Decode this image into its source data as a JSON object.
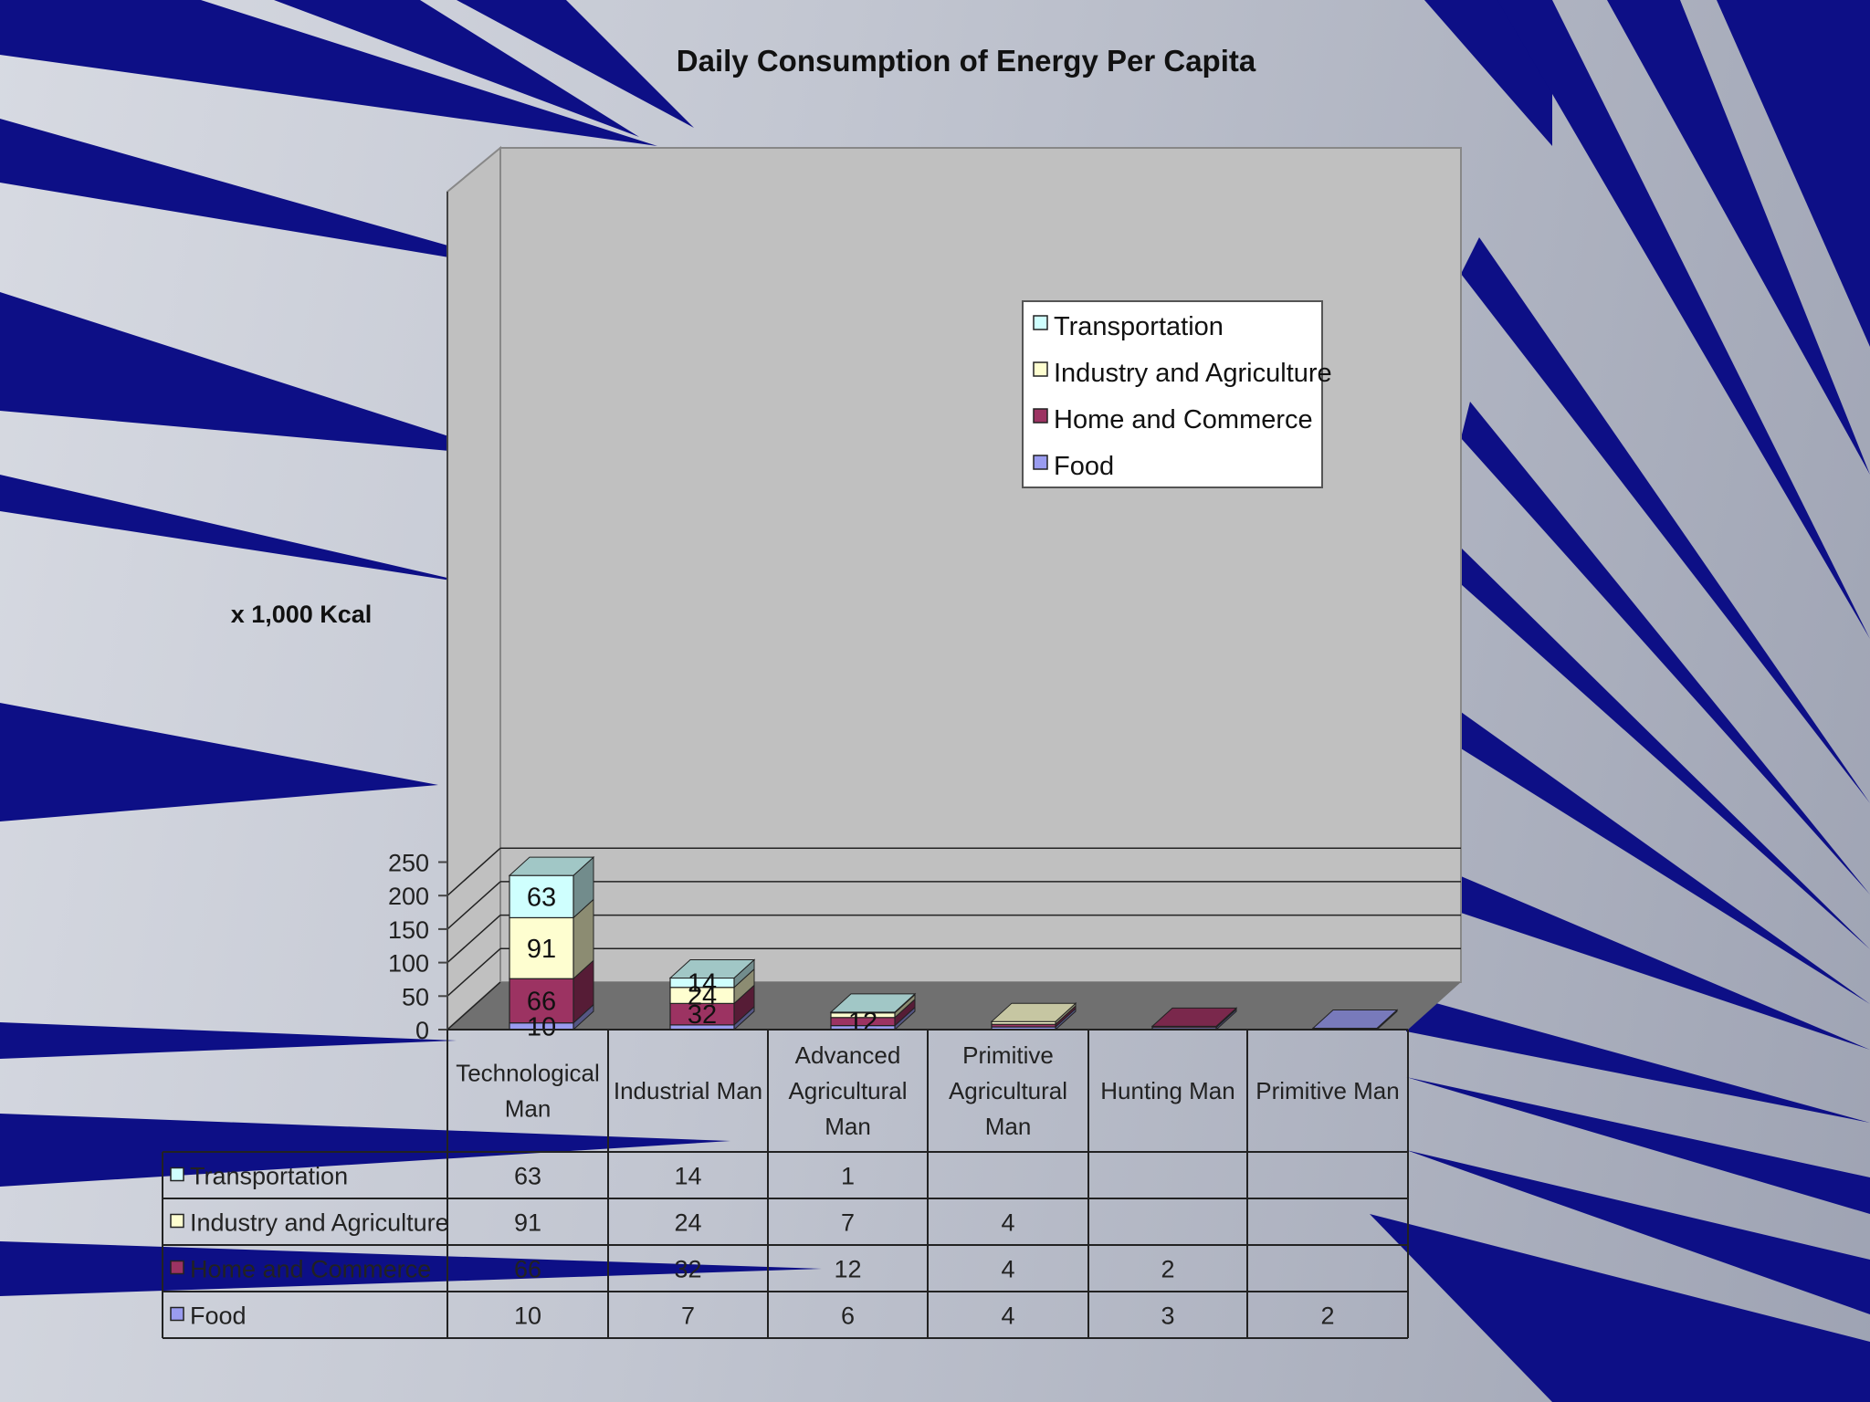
{
  "chart_data": {
    "type": "bar",
    "stacked": true,
    "title": "Daily Consumption of Energy Per Capita",
    "ylabel": "x 1,000 Kcal",
    "xlabel": "",
    "ylim": [
      0,
      250
    ],
    "y_ticks": [
      0,
      50,
      100,
      150,
      200,
      250
    ],
    "grid": true,
    "legend_position": "top-right",
    "categories": [
      "Technological Man",
      "Industrial Man",
      "Advanced Agricultural Man",
      "Primitive Agricultural Man",
      "Hunting Man",
      "Primitive Man"
    ],
    "series": [
      {
        "name": "Food",
        "values": [
          10,
          7,
          6,
          4,
          3,
          2
        ],
        "labels": [
          "10",
          "",
          "",
          "",
          "",
          ""
        ],
        "color": "#9a9cf0"
      },
      {
        "name": "Home and Commerce",
        "values": [
          66,
          32,
          12,
          4,
          2,
          null
        ],
        "labels": [
          "66",
          "32",
          "12",
          "",
          "",
          ""
        ],
        "color": "#9c3362"
      },
      {
        "name": "Industry and Agriculture",
        "values": [
          91,
          24,
          7,
          4,
          null,
          null
        ],
        "labels": [
          "91",
          "24",
          "",
          "",
          "",
          ""
        ],
        "color": "#fefed0"
      },
      {
        "name": "Transportation",
        "values": [
          63,
          14,
          1,
          null,
          null,
          null
        ],
        "labels": [
          "63",
          "14",
          "",
          "",
          "",
          ""
        ],
        "color": "#cffffe"
      }
    ],
    "data_table": {
      "rows": [
        {
          "series": "Transportation",
          "cells": [
            "63",
            "14",
            "1",
            "",
            "",
            ""
          ]
        },
        {
          "series": "Industry and Agriculture",
          "cells": [
            "91",
            "24",
            "7",
            "4",
            "",
            ""
          ]
        },
        {
          "series": "Home and Commerce",
          "cells": [
            "66",
            "32",
            "12",
            "4",
            "2",
            ""
          ]
        },
        {
          "series": "Food",
          "cells": [
            "10",
            "7",
            "6",
            "4",
            "3",
            "2"
          ]
        }
      ]
    }
  }
}
